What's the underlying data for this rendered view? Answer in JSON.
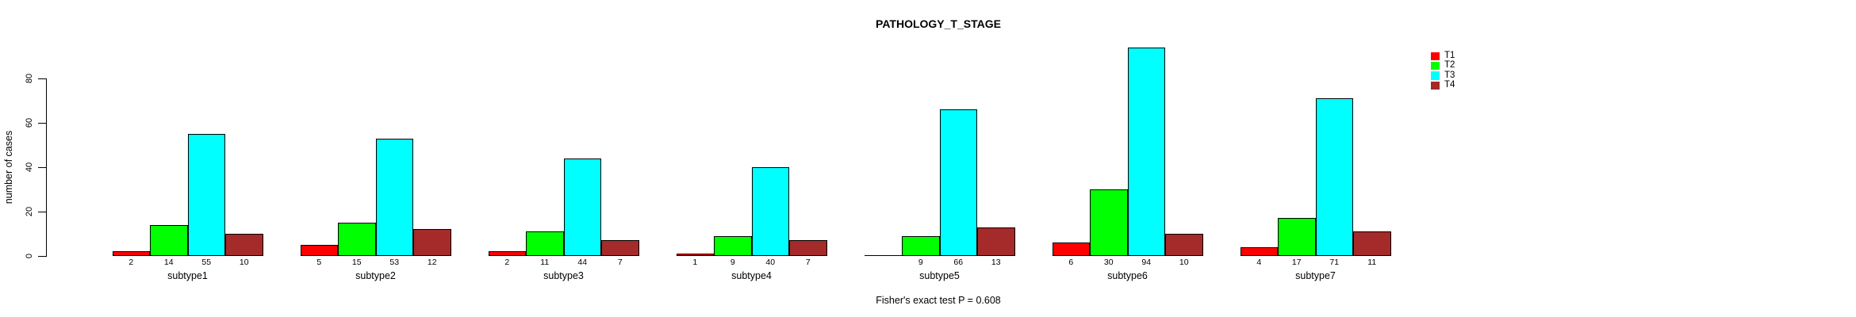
{
  "chart_data": {
    "type": "bar",
    "title": "PATHOLOGY_T_STAGE",
    "xlabel": "",
    "ylabel": "number of cases",
    "annotation": "Fisher's exact test P = 0.608",
    "ylim": [
      0,
      80
    ],
    "yticks": [
      0,
      20,
      40,
      60,
      80
    ],
    "grid": false,
    "legend_position": "right",
    "categories": [
      "subtype1",
      "subtype2",
      "subtype3",
      "subtype4",
      "subtype5",
      "subtype6",
      "subtype7"
    ],
    "series": [
      {
        "name": "T1",
        "color": "#FF0000",
        "values": [
          2,
          5,
          2,
          1,
          0,
          6,
          4
        ]
      },
      {
        "name": "T2",
        "color": "#00FF00",
        "values": [
          14,
          15,
          11,
          9,
          9,
          30,
          17
        ]
      },
      {
        "name": "T3",
        "color": "#00FFFF",
        "values": [
          55,
          53,
          44,
          40,
          66,
          94,
          71
        ]
      },
      {
        "name": "T4",
        "color": "#A52A2A",
        "values": [
          10,
          12,
          7,
          7,
          13,
          10,
          11
        ]
      }
    ],
    "bar_labels": [
      [
        "2",
        "14",
        "55",
        "10"
      ],
      [
        "5",
        "15",
        "53",
        "12"
      ],
      [
        "2",
        "11",
        "44",
        "7"
      ],
      [
        "1",
        "9",
        "40",
        "7"
      ],
      [
        "",
        "9",
        "66",
        "13"
      ],
      [
        "6",
        "30",
        "94",
        "10"
      ],
      [
        "4",
        "17",
        "71",
        "11"
      ]
    ]
  },
  "colors": {
    "background": "#FFFFFF",
    "axis": "#000000",
    "text": "#000000"
  }
}
